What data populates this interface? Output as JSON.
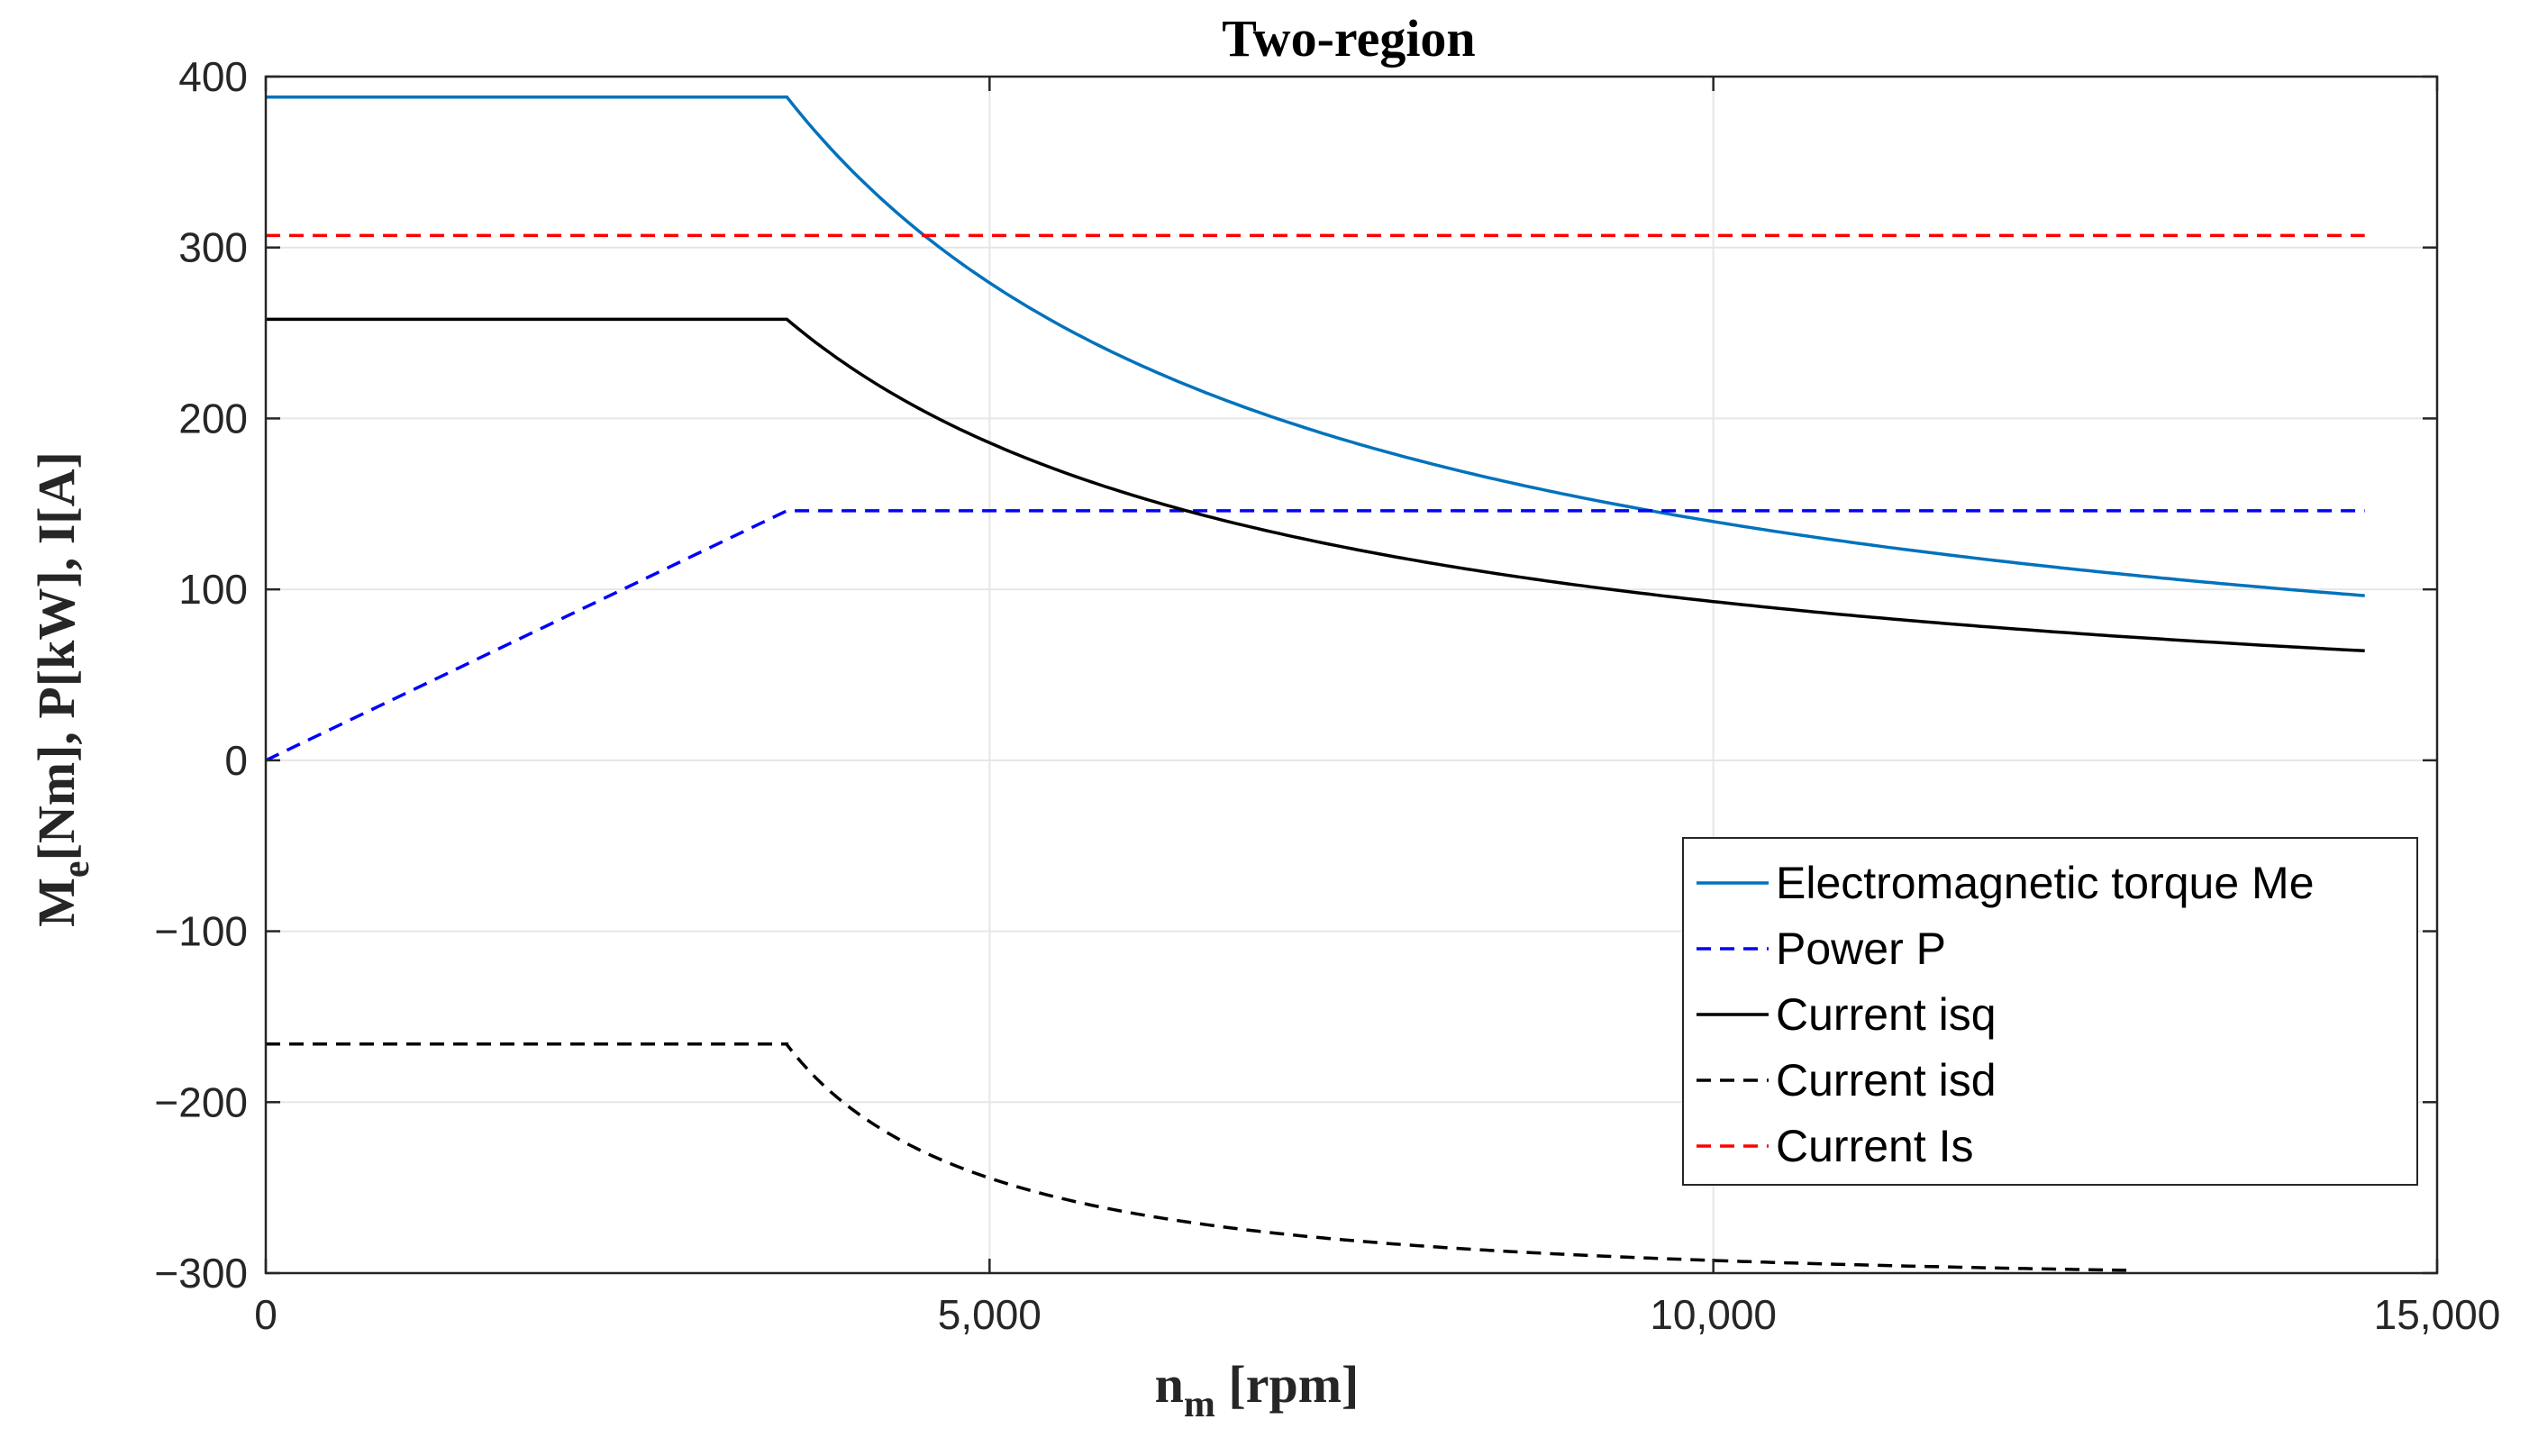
{
  "chart_data": {
    "type": "line",
    "title": "Two-region",
    "xlabel": {
      "main": "n",
      "sub": "m",
      "rest": " [rpm]"
    },
    "ylabel": {
      "main": "M",
      "sub": "e",
      "rest": "[Nm], P[kW], I[A]"
    },
    "xlim": [
      0,
      15000
    ],
    "ylim": [
      -300,
      400
    ],
    "xticks": [
      0,
      5000,
      10000,
      15000
    ],
    "xtick_labels": [
      "0",
      "5,000",
      "10,000",
      "15,000"
    ],
    "yticks": [
      -300,
      -200,
      -100,
      0,
      100,
      200,
      300,
      400
    ],
    "ytick_labels": [
      "−300",
      "−200",
      "−100",
      "0",
      "100",
      "200",
      "300",
      "400"
    ],
    "grid": true,
    "legend_position": "bottom-right",
    "base_speed": 3600,
    "max_speed": 14500,
    "series": [
      {
        "name": "Electromagnetic torque Me",
        "color": "#0072BD",
        "dash": "solid",
        "model": "constant-then-hyperbolic",
        "const_value": 388,
        "x": [
          0,
          3600,
          4600,
          5000,
          6000,
          7000,
          8000,
          9000,
          10000,
          12000,
          14500
        ],
        "values": [
          388,
          388,
          304,
          279,
          233,
          200,
          175,
          155,
          140,
          116,
          96
        ]
      },
      {
        "name": "Power P",
        "color": "#0000FF",
        "dash": "dashed",
        "x": [
          0,
          3600,
          14500
        ],
        "values": [
          0,
          146,
          146
        ]
      },
      {
        "name": "Current isq",
        "color": "#000000",
        "dash": "solid",
        "model": "constant-then-hyperbolic",
        "const_value": 258,
        "x": [
          0,
          3600,
          5000,
          6000,
          8000,
          10000,
          12000,
          14500
        ],
        "values": [
          258,
          258,
          186,
          155,
          116,
          93,
          77,
          57
        ]
      },
      {
        "name": "Current isd",
        "color": "#000000",
        "dash": "dashed",
        "model": "constant-then-saturating",
        "const_value": -166,
        "x": [
          0,
          3600,
          5000,
          6000,
          8000,
          10000,
          12000,
          12900
        ],
        "values": [
          -166,
          -166,
          -254,
          -268,
          -286,
          -293,
          -298,
          -300
        ]
      },
      {
        "name": "Current Is",
        "color": "#FF0000",
        "dash": "dashed",
        "x": [
          0,
          14500
        ],
        "values": [
          307,
          307
        ]
      }
    ]
  }
}
